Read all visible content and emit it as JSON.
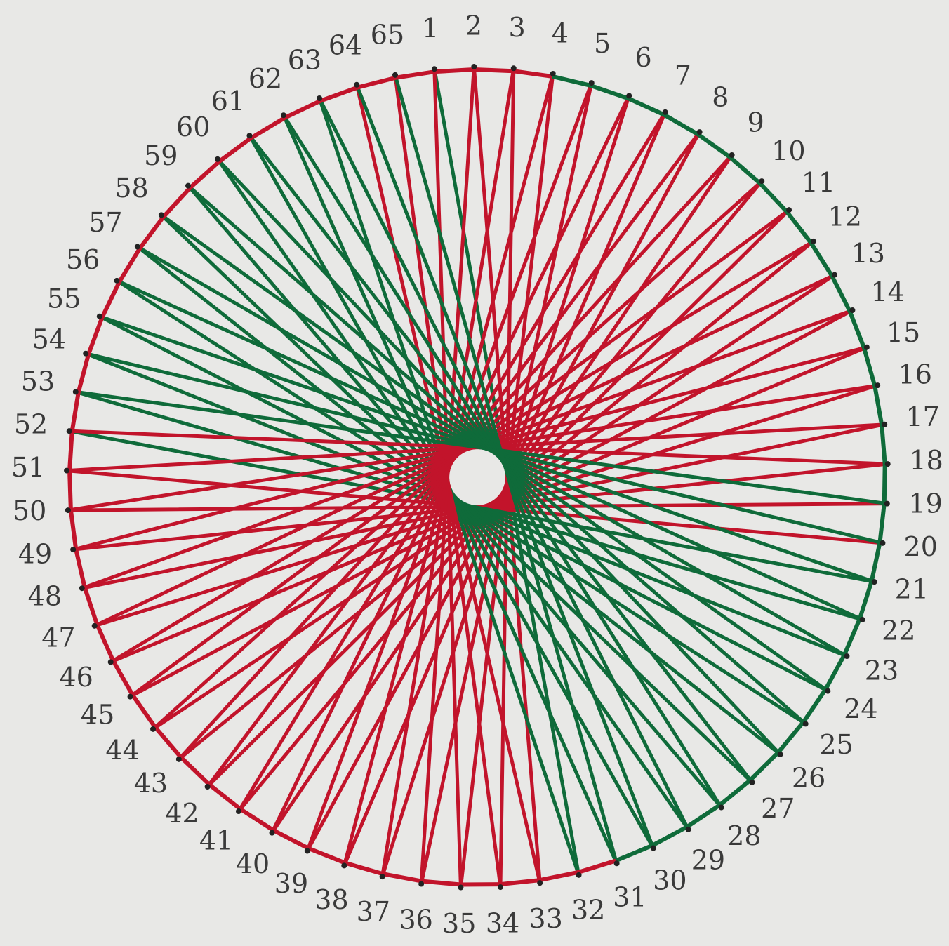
{
  "labels": [
    1,
    2,
    3,
    4,
    5,
    6,
    7,
    8,
    9,
    10,
    11,
    12,
    13,
    14,
    15,
    16,
    17,
    18,
    19,
    20,
    21,
    22,
    23,
    24,
    25,
    26,
    27,
    28,
    29,
    30,
    31,
    32,
    33,
    34,
    35,
    36,
    37,
    38,
    39,
    40,
    41,
    42,
    43,
    44,
    45,
    46,
    47,
    48,
    49,
    50,
    51,
    52,
    53,
    54,
    55,
    56,
    57,
    58,
    59,
    60,
    61,
    62,
    63,
    64,
    65
  ]
}
